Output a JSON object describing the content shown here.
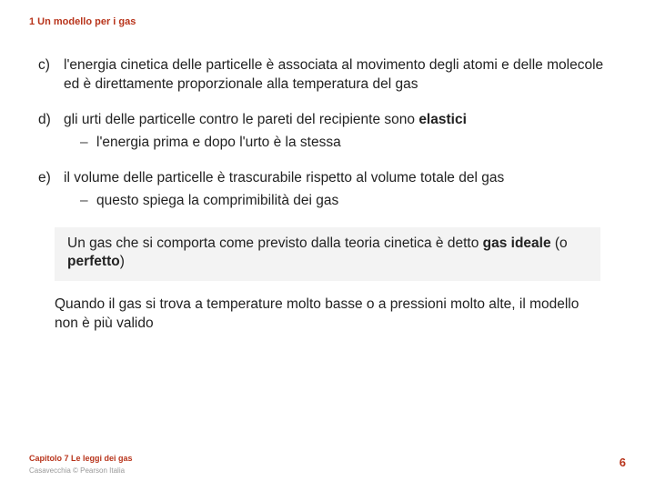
{
  "header": {
    "text": "1 Un modello per i gas"
  },
  "items": [
    {
      "marker": "c)",
      "text": "l'energia cinetica delle particelle è associata al movimento degli atomi e delle molecole ed è direttamente proporzionale alla temperatura del gas",
      "sub": null
    },
    {
      "marker": "d)",
      "text_pre": "gli urti delle particelle contro le pareti del recipiente sono ",
      "text_bold": "elastici",
      "sub": {
        "marker": "–",
        "text": "l'energia prima e dopo l'urto è la stessa"
      }
    },
    {
      "marker": "e)",
      "text": "il volume delle particelle è trascurabile rispetto al volume totale del gas",
      "sub": {
        "marker": "–",
        "text": "questo spiega la comprimibilità dei gas"
      }
    }
  ],
  "callout": {
    "pre1": "Un gas che si comporta come previsto dalla teoria cinetica è detto ",
    "bold1": "gas ideale",
    "mid": " (o ",
    "bold2": "perfetto",
    "post": ")"
  },
  "paragraph": {
    "text": "Quando il gas si trova a temperature molto basse o a pressioni molto alte, il modello non è più valido"
  },
  "footer": {
    "chapter": "Capitolo 7 Le leggi dei gas",
    "credit": "Casavecchia © Pearson Italia",
    "page": "6"
  },
  "colors": {
    "accent": "#b8341b",
    "text": "#222222",
    "callout_bg": "#f3f3f3",
    "credit": "#999999"
  }
}
